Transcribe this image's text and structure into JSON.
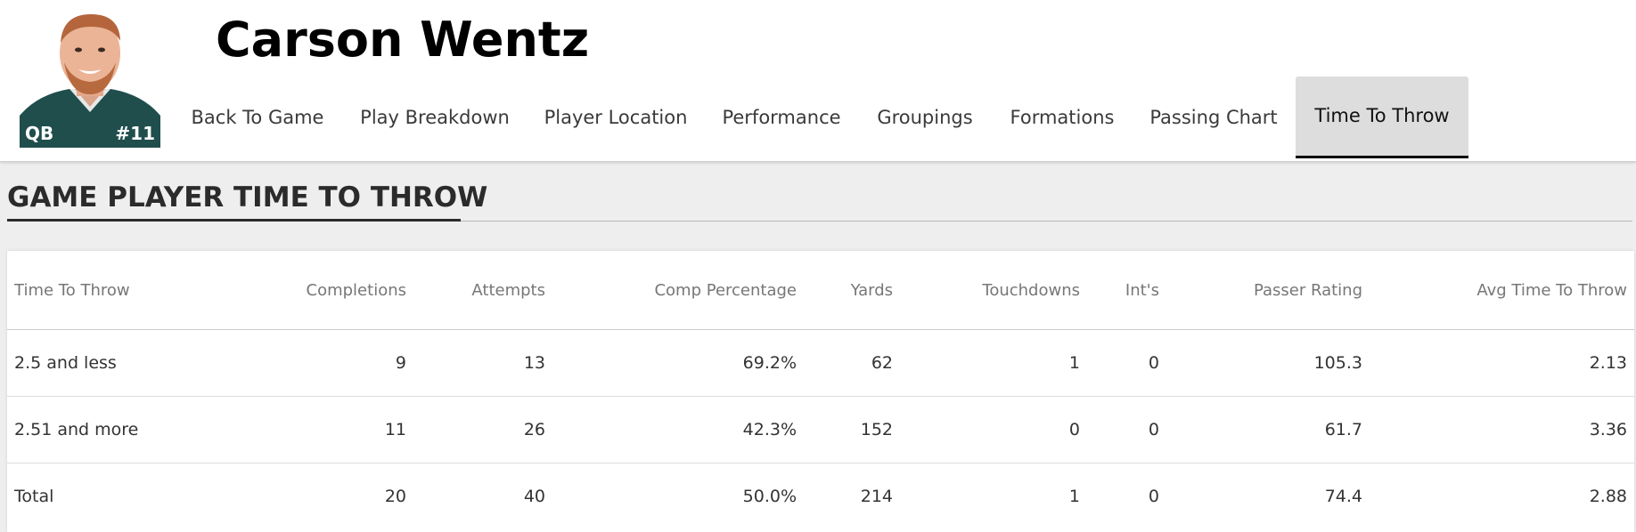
{
  "player": {
    "name": "Carson Wentz",
    "position": "QB",
    "number": "#11"
  },
  "nav": {
    "tabs": [
      {
        "label": "Back To Game"
      },
      {
        "label": "Play Breakdown"
      },
      {
        "label": "Player Location"
      },
      {
        "label": "Performance"
      },
      {
        "label": "Groupings"
      },
      {
        "label": "Formations"
      },
      {
        "label": "Passing Chart"
      },
      {
        "label": "Time To Throw",
        "active": true
      }
    ]
  },
  "section": {
    "title": "GAME PLAYER TIME TO THROW"
  },
  "table": {
    "columns": [
      "Time To Throw",
      "Completions",
      "Attempts",
      "Comp Percentage",
      "Yards",
      "Touchdowns",
      "Int's",
      "Passer Rating",
      "Avg Time To Throw"
    ],
    "rows": [
      [
        "2.5 and less",
        "9",
        "13",
        "69.2%",
        "62",
        "1",
        "0",
        "105.3",
        "2.13"
      ],
      [
        "2.51 and more",
        "11",
        "26",
        "42.3%",
        "152",
        "0",
        "0",
        "61.7",
        "3.36"
      ],
      [
        "Total",
        "20",
        "40",
        "50.0%",
        "214",
        "1",
        "0",
        "74.4",
        "2.88"
      ]
    ]
  },
  "colors": {
    "jersey": "#1f4e4d",
    "active_tab_bg": "#dddddd",
    "page_bg": "#eeeeee"
  }
}
